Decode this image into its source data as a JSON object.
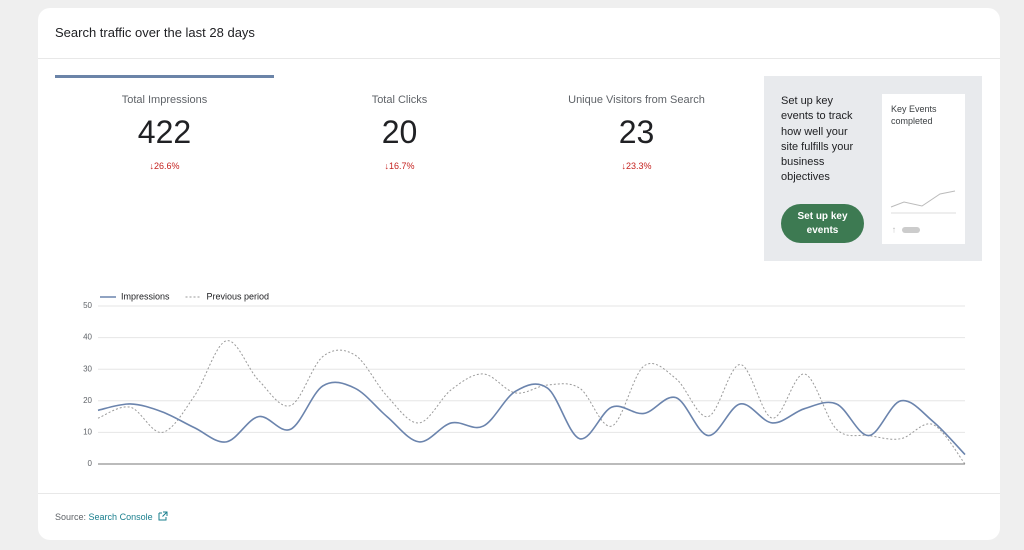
{
  "header": {
    "title": "Search traffic over the last 28 days"
  },
  "metrics": [
    {
      "label": "Total Impressions",
      "value": 422,
      "change": "↓26.6%"
    },
    {
      "label": "Total Clicks",
      "value": 20,
      "change": "↓16.7%"
    },
    {
      "label": "Unique Visitors from Search",
      "value": 23,
      "change": "↓23.3%"
    }
  ],
  "promo": {
    "text": "Set up key events to track how well your site fulfills your business objectives",
    "button": "Set up key events",
    "card_title": "Key Events completed"
  },
  "chart_data": {
    "type": "line",
    "categories": [
      null,
      null,
      null,
      null,
      null,
      null,
      null,
      null,
      null,
      null,
      null,
      null,
      null,
      null,
      null,
      null,
      null,
      null,
      null,
      null,
      null,
      null,
      null,
      null,
      null,
      null,
      null,
      null
    ],
    "series": [
      {
        "name": "Impressions",
        "color": "#6b84ad",
        "style": "solid",
        "values": [
          17,
          19,
          16.5,
          11.5,
          7,
          15,
          11,
          24.7,
          24,
          15,
          7,
          13,
          12,
          23,
          24,
          8,
          18,
          16,
          21,
          9,
          19,
          13,
          17.5,
          19,
          9,
          20,
          13.5,
          3
        ]
      },
      {
        "name": "Previous period",
        "color": "#9a9a9a",
        "style": "dotted",
        "values": [
          14.5,
          18,
          10,
          21.5,
          39,
          26.5,
          18.5,
          34,
          34.5,
          21.5,
          13,
          23.5,
          28.5,
          22.5,
          25,
          24,
          12,
          31,
          27,
          15,
          31.5,
          14.5,
          28.5,
          11,
          9,
          8,
          12.5,
          0
        ]
      }
    ],
    "ylim": [
      0,
      50
    ],
    "yticks": [
      0,
      10,
      20,
      30,
      40,
      50
    ],
    "grid": true
  },
  "footer": {
    "prefix": "Source:",
    "link": "Search Console"
  }
}
